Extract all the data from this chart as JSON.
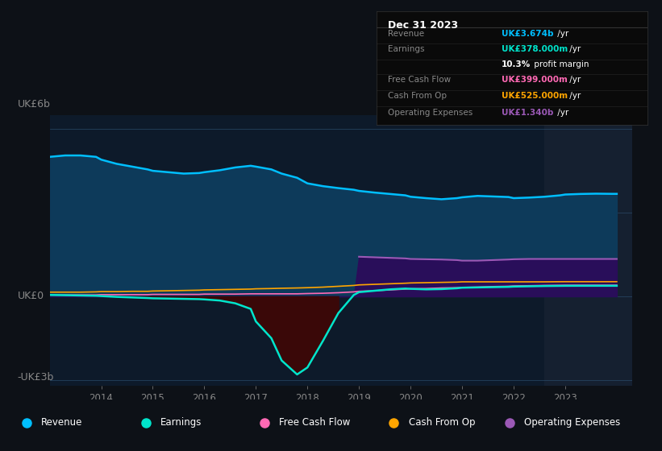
{
  "bg_color": "#0d1117",
  "plot_bg_color": "#0d1a2a",
  "grid_color": "#2a4a6a",
  "text_color": "#888888",
  "title_color": "#ffffff",
  "years": [
    2013.0,
    2013.3,
    2013.6,
    2013.9,
    2014.0,
    2014.3,
    2014.6,
    2014.9,
    2015.0,
    2015.3,
    2015.6,
    2015.9,
    2016.0,
    2016.3,
    2016.6,
    2016.9,
    2017.0,
    2017.3,
    2017.5,
    2017.8,
    2018.0,
    2018.3,
    2018.6,
    2018.9,
    2019.0,
    2019.3,
    2019.6,
    2019.9,
    2020.0,
    2020.3,
    2020.6,
    2020.9,
    2021.0,
    2021.3,
    2021.6,
    2021.9,
    2022.0,
    2022.3,
    2022.6,
    2022.9,
    2023.0,
    2023.3,
    2023.6,
    2023.9,
    2024.0
  ],
  "revenue": [
    5.0,
    5.05,
    5.05,
    5.0,
    4.9,
    4.75,
    4.65,
    4.55,
    4.5,
    4.45,
    4.4,
    4.42,
    4.45,
    4.52,
    4.62,
    4.68,
    4.65,
    4.55,
    4.4,
    4.25,
    4.05,
    3.95,
    3.88,
    3.82,
    3.78,
    3.72,
    3.67,
    3.62,
    3.57,
    3.52,
    3.48,
    3.52,
    3.55,
    3.6,
    3.58,
    3.56,
    3.52,
    3.54,
    3.57,
    3.62,
    3.65,
    3.67,
    3.68,
    3.674,
    3.674
  ],
  "earnings": [
    0.05,
    0.04,
    0.03,
    0.02,
    0.01,
    -0.02,
    -0.04,
    -0.06,
    -0.07,
    -0.08,
    -0.09,
    -0.1,
    -0.11,
    -0.15,
    -0.25,
    -0.45,
    -0.9,
    -1.5,
    -2.3,
    -2.8,
    -2.55,
    -1.6,
    -0.6,
    0.05,
    0.15,
    0.2,
    0.25,
    0.28,
    0.27,
    0.25,
    0.26,
    0.29,
    0.31,
    0.32,
    0.33,
    0.34,
    0.35,
    0.36,
    0.37,
    0.375,
    0.377,
    0.378,
    0.378,
    0.378,
    0.378
  ],
  "free_cash_flow": [
    0.05,
    0.05,
    0.05,
    0.05,
    0.06,
    0.06,
    0.06,
    0.06,
    0.07,
    0.07,
    0.07,
    0.07,
    0.08,
    0.08,
    0.08,
    0.09,
    0.09,
    0.09,
    0.09,
    0.09,
    0.1,
    0.11,
    0.13,
    0.16,
    0.18,
    0.2,
    0.23,
    0.26,
    0.27,
    0.28,
    0.3,
    0.31,
    0.32,
    0.33,
    0.35,
    0.36,
    0.37,
    0.38,
    0.39,
    0.395,
    0.398,
    0.399,
    0.399,
    0.399,
    0.399
  ],
  "cash_from_op": [
    0.15,
    0.15,
    0.15,
    0.16,
    0.17,
    0.17,
    0.18,
    0.18,
    0.19,
    0.2,
    0.21,
    0.22,
    0.23,
    0.24,
    0.25,
    0.26,
    0.27,
    0.28,
    0.29,
    0.3,
    0.31,
    0.33,
    0.36,
    0.39,
    0.41,
    0.43,
    0.45,
    0.47,
    0.48,
    0.49,
    0.5,
    0.51,
    0.52,
    0.52,
    0.52,
    0.52,
    0.52,
    0.52,
    0.52,
    0.524,
    0.525,
    0.525,
    0.525,
    0.525,
    0.525
  ],
  "operating_expenses": [
    0.0,
    0.0,
    0.0,
    0.0,
    0.0,
    0.0,
    0.0,
    0.0,
    0.0,
    0.0,
    0.0,
    0.0,
    0.0,
    0.0,
    0.0,
    0.0,
    0.0,
    0.0,
    0.0,
    0.0,
    0.0,
    0.0,
    0.0,
    0.0,
    1.42,
    1.4,
    1.38,
    1.36,
    1.34,
    1.33,
    1.32,
    1.3,
    1.28,
    1.28,
    1.3,
    1.32,
    1.33,
    1.34,
    1.34,
    1.34,
    1.34,
    1.34,
    1.34,
    1.34,
    1.34
  ],
  "revenue_color": "#00bfff",
  "earnings_color": "#00e5cc",
  "free_cash_flow_color": "#ff69b4",
  "cash_from_op_color": "#ffa500",
  "operating_expenses_color": "#9b59b6",
  "revenue_fill_color": "#0d3a5a",
  "earnings_fill_neg_color": "#3a0808",
  "operating_expenses_fill_color": "#2d0a5a",
  "ylabel_top": "UK£6b",
  "ylabel_bottom": "-UK£3b",
  "ylabel_zero": "UK£0",
  "ylim": [
    -3.2,
    6.5
  ],
  "xlim": [
    2013.0,
    2024.3
  ],
  "xticks": [
    2014,
    2015,
    2016,
    2017,
    2018,
    2019,
    2020,
    2021,
    2022,
    2023
  ],
  "info_box": {
    "title": "Dec 31 2023",
    "rows": [
      {
        "label": "Revenue",
        "value": "UK£3.674b",
        "suffix": " /yr",
        "color": "#00bfff"
      },
      {
        "label": "Earnings",
        "value": "UK£378.000m",
        "suffix": " /yr",
        "color": "#00e5cc"
      },
      {
        "label": "",
        "value": "10.3%",
        "suffix": " profit margin",
        "color": "#ffffff",
        "is_margin": true
      },
      {
        "label": "Free Cash Flow",
        "value": "UK£399.000m",
        "suffix": " /yr",
        "color": "#ff69b4"
      },
      {
        "label": "Cash From Op",
        "value": "UK£525.000m",
        "suffix": " /yr",
        "color": "#ffa500"
      },
      {
        "label": "Operating Expenses",
        "value": "UK£1.340b",
        "suffix": " /yr",
        "color": "#9b59b6"
      }
    ]
  },
  "legend": [
    {
      "label": "Revenue",
      "color": "#00bfff"
    },
    {
      "label": "Earnings",
      "color": "#00e5cc"
    },
    {
      "label": "Free Cash Flow",
      "color": "#ff69b4"
    },
    {
      "label": "Cash From Op",
      "color": "#ffa500"
    },
    {
      "label": "Operating Expenses",
      "color": "#9b59b6"
    }
  ],
  "shaded_region_start": 2022.6,
  "shaded_region_color": "#152030"
}
